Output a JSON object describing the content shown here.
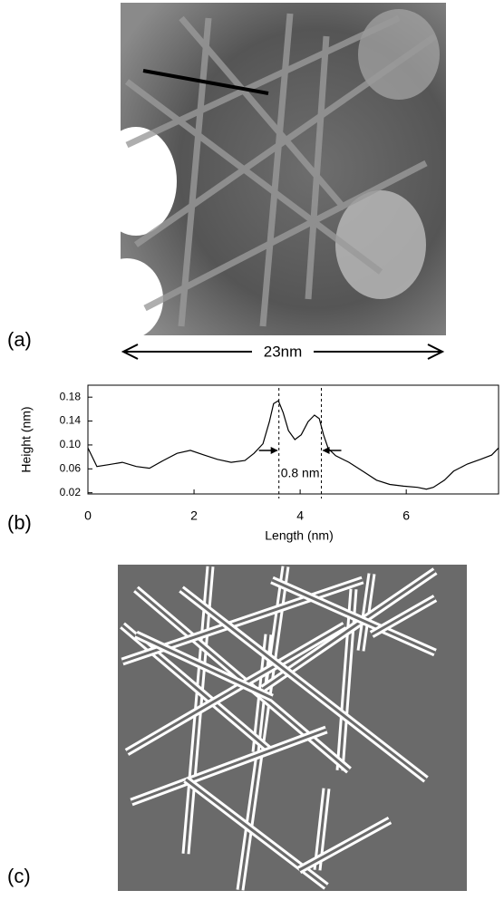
{
  "panel_a": {
    "label": "(a)",
    "scale": "23nm"
  },
  "chart_data": {
    "type": "line",
    "label": "(b)",
    "x_label": "Length (nm)",
    "y_label": "Height (nm)",
    "annotation": "0.8 nm",
    "x": [
      0.0,
      0.17,
      0.39,
      0.65,
      0.91,
      1.16,
      1.42,
      1.68,
      1.93,
      2.19,
      2.44,
      2.7,
      2.96,
      3.13,
      3.3,
      3.42,
      3.5,
      3.59,
      3.68,
      3.78,
      3.9,
      4.02,
      4.15,
      4.27,
      4.36,
      4.44,
      4.53,
      4.67,
      4.92,
      5.18,
      5.44,
      5.69,
      5.95,
      6.21,
      6.38,
      6.51,
      6.72,
      6.89,
      7.15,
      7.4,
      7.61,
      7.74
    ],
    "values": [
      0.095,
      0.064,
      0.067,
      0.071,
      0.064,
      0.061,
      0.074,
      0.086,
      0.091,
      0.083,
      0.076,
      0.071,
      0.074,
      0.086,
      0.102,
      0.139,
      0.169,
      0.174,
      0.154,
      0.124,
      0.109,
      0.117,
      0.139,
      0.15,
      0.144,
      0.117,
      0.094,
      0.082,
      0.071,
      0.056,
      0.041,
      0.034,
      0.031,
      0.029,
      0.026,
      0.029,
      0.041,
      0.056,
      0.068,
      0.076,
      0.083,
      0.095
    ],
    "color": "#000000",
    "markers": [
      3.6,
      4.4
    ],
    "xlim": [
      0,
      7.74
    ],
    "ylim": [
      0.018,
      0.2
    ],
    "xticks": [
      0,
      2,
      4,
      6
    ],
    "yticks": [
      0.02,
      0.06,
      {
        "value": 0.1,
        "label": "0.10"
      },
      0.14,
      0.18
    ]
  },
  "panel_c": {
    "label": "(c)"
  }
}
